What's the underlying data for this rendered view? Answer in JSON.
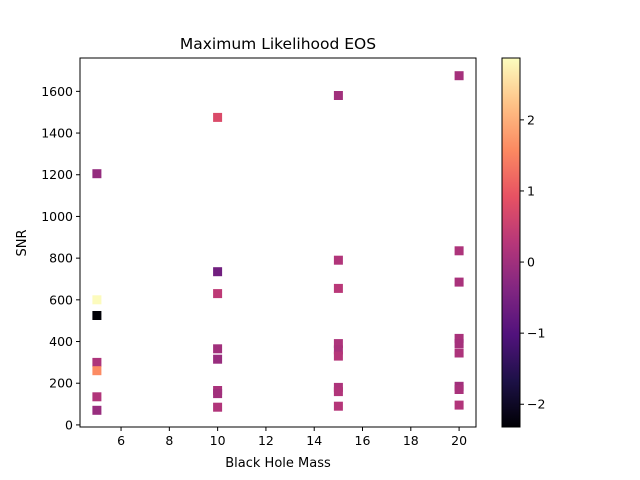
{
  "chart_data": {
    "type": "scatter",
    "title": "Maximum Likelihood EOS",
    "xlabel": "Black Hole Mass",
    "ylabel": "SNR",
    "xlim": [
      4.3,
      20.7
    ],
    "ylim": [
      -10,
      1760
    ],
    "xticks": [
      6,
      8,
      10,
      12,
      14,
      16,
      18,
      20
    ],
    "yticks": [
      0,
      200,
      400,
      600,
      800,
      1000,
      1200,
      1400,
      1600
    ],
    "marker": "square",
    "colormap": "magma",
    "colorbar": {
      "range": [
        -2.32,
        2.87
      ],
      "ticks": [
        -2,
        -1,
        0,
        1,
        2
      ],
      "tick_labels": [
        "−2",
        "−1",
        "0",
        "1",
        "2"
      ]
    },
    "points": [
      {
        "x": 5,
        "y": 1205,
        "c": -0.15
      },
      {
        "x": 5,
        "y": 600,
        "c": 2.85
      },
      {
        "x": 5,
        "y": 525,
        "c": -2.3
      },
      {
        "x": 5,
        "y": 300,
        "c": 0.15
      },
      {
        "x": 5,
        "y": 260,
        "c": 1.6
      },
      {
        "x": 5,
        "y": 135,
        "c": 0.2
      },
      {
        "x": 5,
        "y": 70,
        "c": -0.1
      },
      {
        "x": 10,
        "y": 1475,
        "c": 0.75
      },
      {
        "x": 10,
        "y": 735,
        "c": -0.6
      },
      {
        "x": 10,
        "y": 630,
        "c": 0.35
      },
      {
        "x": 10,
        "y": 365,
        "c": 0.0
      },
      {
        "x": 10,
        "y": 315,
        "c": -0.1
      },
      {
        "x": 10,
        "y": 165,
        "c": 0.1
      },
      {
        "x": 10,
        "y": 150,
        "c": 0.0
      },
      {
        "x": 10,
        "y": 85,
        "c": 0.2
      },
      {
        "x": 15,
        "y": 1580,
        "c": 0.0
      },
      {
        "x": 15,
        "y": 790,
        "c": 0.2
      },
      {
        "x": 15,
        "y": 655,
        "c": 0.3
      },
      {
        "x": 15,
        "y": 390,
        "c": 0.15
      },
      {
        "x": 15,
        "y": 360,
        "c": 0.1
      },
      {
        "x": 15,
        "y": 330,
        "c": 0.25
      },
      {
        "x": 15,
        "y": 180,
        "c": 0.15
      },
      {
        "x": 15,
        "y": 160,
        "c": 0.2
      },
      {
        "x": 15,
        "y": 90,
        "c": 0.25
      },
      {
        "x": 20,
        "y": 1675,
        "c": 0.05
      },
      {
        "x": 20,
        "y": 835,
        "c": 0.15
      },
      {
        "x": 20,
        "y": 685,
        "c": 0.1
      },
      {
        "x": 20,
        "y": 415,
        "c": 0.1
      },
      {
        "x": 20,
        "y": 390,
        "c": 0.05
      },
      {
        "x": 20,
        "y": 345,
        "c": 0.15
      },
      {
        "x": 20,
        "y": 185,
        "c": 0.0
      },
      {
        "x": 20,
        "y": 170,
        "c": 0.1
      },
      {
        "x": 20,
        "y": 95,
        "c": 0.2
      }
    ]
  }
}
